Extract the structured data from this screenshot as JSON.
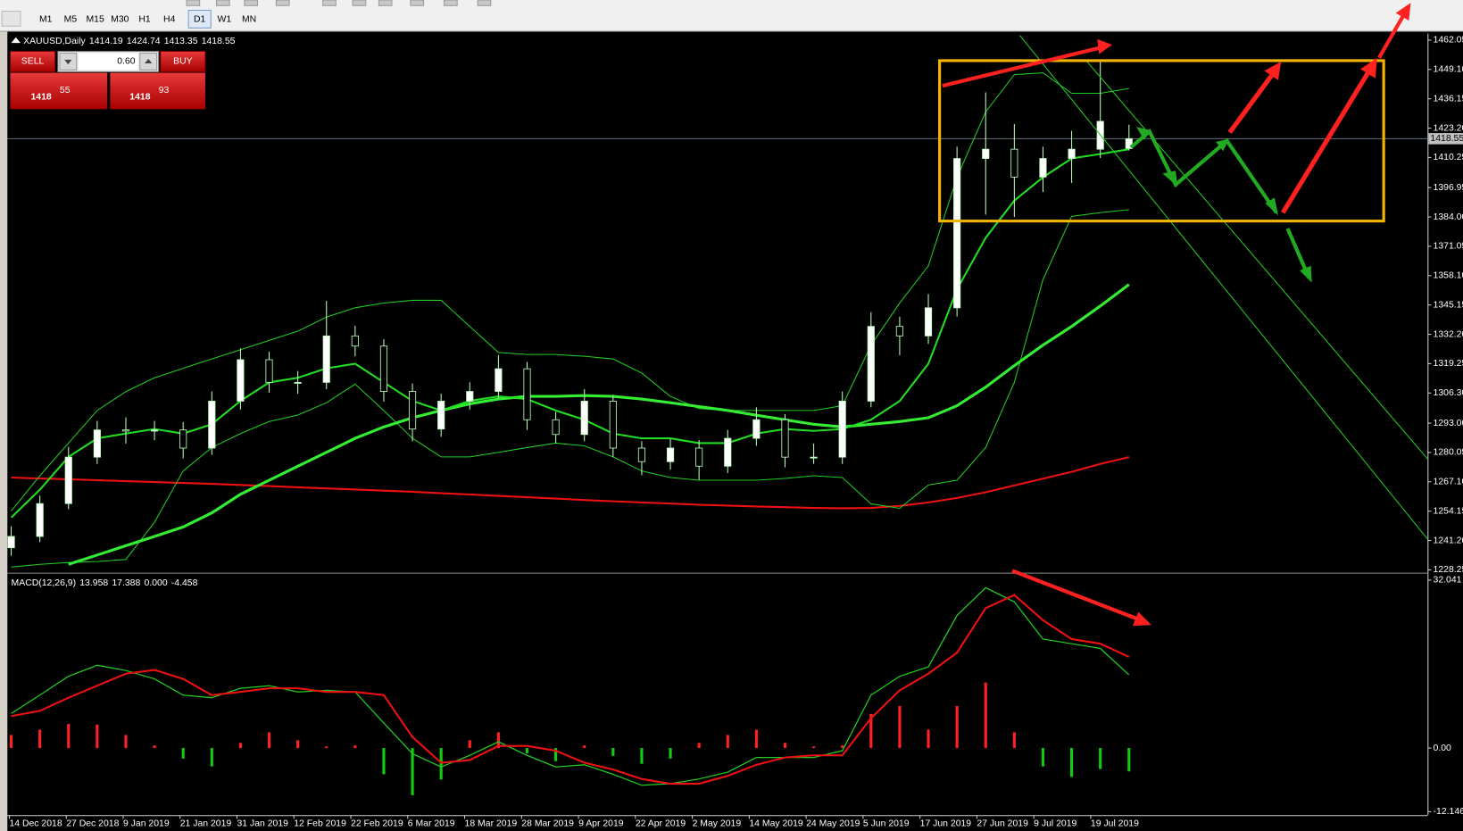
{
  "toolbar": {
    "timeframes": [
      "M1",
      "M5",
      "M15",
      "M30",
      "H1",
      "H4",
      "D1",
      "W1",
      "MN"
    ],
    "active_timeframe": "D1"
  },
  "trade": {
    "sell": "SELL",
    "buy": "BUY",
    "lot": "0.60",
    "bid_big": "1418",
    "bid_pips": "55",
    "ask_big": "1418",
    "ask_pips": "93"
  },
  "chart_data": {
    "type": "candlestick",
    "symbol": "XAUUSD,Daily",
    "candles": [
      [
        1238.0,
        1247.5,
        1234.5,
        1243.0
      ],
      [
        1243.0,
        1261.0,
        1240.5,
        1257.5
      ],
      [
        1257.5,
        1282.5,
        1255.0,
        1278.0
      ],
      [
        1278.0,
        1294.0,
        1275.0,
        1290.0
      ],
      [
        1290.0,
        1295.5,
        1284.0,
        1289.5
      ],
      [
        1289.5,
        1294.0,
        1285.5,
        1290.0
      ],
      [
        1290.0,
        1293.5,
        1277.5,
        1282.0
      ],
      [
        1282.0,
        1307.0,
        1279.0,
        1302.7
      ],
      [
        1302.7,
        1326.0,
        1299.0,
        1321.0
      ],
      [
        1321.0,
        1324.5,
        1306.5,
        1311.0
      ],
      [
        1311.0,
        1316.0,
        1306.0,
        1311.0
      ],
      [
        1311.0,
        1347.0,
        1308.0,
        1331.5
      ],
      [
        1331.5,
        1336.0,
        1322.5,
        1327.0
      ],
      [
        1327.0,
        1330.0,
        1302.5,
        1307.0
      ],
      [
        1307.0,
        1310.5,
        1285.0,
        1290.4
      ],
      [
        1290.4,
        1306.0,
        1287.0,
        1302.7
      ],
      [
        1302.7,
        1311.0,
        1299.0,
        1307.0
      ],
      [
        1307.0,
        1323.0,
        1304.0,
        1317.0
      ],
      [
        1317.0,
        1320.0,
        1290.0,
        1294.5
      ],
      [
        1294.5,
        1298.0,
        1284.0,
        1288.0
      ],
      [
        1288.0,
        1308.0,
        1285.0,
        1302.7
      ],
      [
        1302.7,
        1305.5,
        1278.0,
        1282.0
      ],
      [
        1282.0,
        1285.0,
        1270.0,
        1276.0
      ],
      [
        1276.0,
        1286.0,
        1272.5,
        1282.0
      ],
      [
        1282.0,
        1285.5,
        1268.0,
        1274.0
      ],
      [
        1274.0,
        1290.0,
        1271.0,
        1286.3
      ],
      [
        1286.3,
        1300.0,
        1283.0,
        1294.5
      ],
      [
        1294.5,
        1297.0,
        1273.5,
        1278.0
      ],
      [
        1278.0,
        1284.0,
        1275.0,
        1278.0
      ],
      [
        1278.0,
        1307.0,
        1275.0,
        1302.7
      ],
      [
        1302.7,
        1342.0,
        1300.0,
        1335.7
      ],
      [
        1335.7,
        1340.0,
        1323.0,
        1331.5
      ],
      [
        1331.5,
        1350.0,
        1328.0,
        1343.9
      ],
      [
        1343.9,
        1415.0,
        1340.0,
        1409.8
      ],
      [
        1409.8,
        1439.0,
        1385.0,
        1413.9
      ],
      [
        1413.9,
        1425.0,
        1384.0,
        1401.6
      ],
      [
        1401.6,
        1415.0,
        1395.0,
        1409.8
      ],
      [
        1409.8,
        1422.0,
        1399.0,
        1413.9
      ],
      [
        1413.9,
        1452.5,
        1410.0,
        1426.2
      ],
      [
        1414.19,
        1424.74,
        1413.35,
        1418.55
      ]
    ],
    "bull_color": "#ffffff",
    "bear_color": "#000000",
    "candle_outline": "#b8ffb8",
    "ma_fast": {
      "color": "#22dd22",
      "values": [
        1251.3,
        1263.6,
        1278.1,
        1286.3,
        1288.4,
        1290.4,
        1288.4,
        1292.5,
        1302.8,
        1311.0,
        1313.0,
        1317.2,
        1319.2,
        1311.0,
        1302.8,
        1298.6,
        1302.8,
        1304.8,
        1303.6,
        1298.6,
        1294.5,
        1288.4,
        1286.3,
        1286.3,
        1284.2,
        1284.2,
        1288.4,
        1290.4,
        1289.6,
        1290.4,
        1294.5,
        1302.8,
        1319.2,
        1352.1,
        1374.8,
        1391.2,
        1401.5,
        1409.8,
        1411.8,
        1413.9
      ]
    },
    "ma_slow": {
      "color": "#33ee33",
      "values": [
        null,
        null,
        1230.7,
        1234.8,
        1238.9,
        1243.0,
        1247.2,
        1253.4,
        1261.6,
        1267.8,
        1274.0,
        1280.1,
        1286.3,
        1291.3,
        1295.4,
        1298.6,
        1301.5,
        1303.6,
        1304.8,
        1304.8,
        1305.2,
        1304.8,
        1303.6,
        1302.0,
        1300.3,
        1298.6,
        1296.5,
        1294.5,
        1292.5,
        1291.3,
        1292.5,
        1293.7,
        1295.4,
        1300.7,
        1308.9,
        1318.4,
        1327.4,
        1335.7,
        1344.7,
        1354.2
      ]
    },
    "ma_long": {
      "color": "#ee1111",
      "values": [
        1269.0,
        1268.6,
        1268.2,
        1267.8,
        1267.4,
        1267.0,
        1266.6,
        1266.2,
        1265.7,
        1265.2,
        1264.7,
        1264.2,
        1263.7,
        1263.2,
        1262.7,
        1262.1,
        1261.5,
        1260.9,
        1260.3,
        1259.7,
        1259.1,
        1258.5,
        1258.0,
        1257.5,
        1257.0,
        1256.6,
        1256.2,
        1255.9,
        1255.6,
        1255.4,
        1255.6,
        1256.5,
        1258.0,
        1260.0,
        1262.5,
        1265.5,
        1268.5,
        1271.5,
        1275.0,
        1278.0
      ]
    },
    "band_upper": {
      "color": "#22cc22",
      "values": [
        1254.2,
        1269.8,
        1284.2,
        1298.6,
        1306.9,
        1313.0,
        1317.2,
        1321.3,
        1325.4,
        1329.5,
        1333.6,
        1339.8,
        1343.9,
        1346.0,
        1347.2,
        1347.2,
        1335.7,
        1324.2,
        1323.3,
        1323.3,
        1322.5,
        1321.3,
        1315.1,
        1304.8,
        1299.4,
        1298.6,
        1298.6,
        1298.6,
        1298.6,
        1300.7,
        1327.4,
        1346.0,
        1362.4,
        1401.5,
        1430.3,
        1446.8,
        1447.6,
        1438.6,
        1438.6,
        1440.7
      ]
    },
    "band_lower": {
      "color": "#22cc22",
      "values": [
        1229.5,
        1230.7,
        1231.5,
        1231.9,
        1232.8,
        1249.3,
        1271.9,
        1282.2,
        1288.4,
        1293.7,
        1296.6,
        1302.0,
        1310.2,
        1298.6,
        1286.3,
        1278.1,
        1278.1,
        1280.1,
        1282.2,
        1284.2,
        1283.0,
        1278.1,
        1271.9,
        1269.0,
        1267.8,
        1267.8,
        1267.8,
        1268.6,
        1269.8,
        1269.0,
        1257.4,
        1255.4,
        1265.7,
        1267.8,
        1282.2,
        1311.0,
        1356.3,
        1384.3,
        1385.9,
        1387.2
      ]
    },
    "ylim": [
      1227.84,
      1464.93
    ],
    "yticks": [
      1462.05,
      {
        "value": 1449.1,
        "label": "1449.10"
      },
      1436.15,
      {
        "value": 1423.2,
        "label": "1423.20"
      },
      1410.25,
      1396.95,
      {
        "value": 1384,
        "label": "1384.00"
      },
      1371.05,
      {
        "value": 1358.1,
        "label": "1358.10"
      },
      1345.15,
      {
        "value": 1332.2,
        "label": "1332.20"
      },
      1319.25,
      {
        "value": 1306.3,
        "label": "1306.30"
      },
      {
        "value": 1293,
        "label": "1293.00"
      },
      1280.05,
      {
        "value": 1267.1,
        "label": "1267.10"
      },
      1254.15,
      {
        "value": 1241.2,
        "label": "1241.20"
      },
      1228.25
    ],
    "dates": [
      "14 Dec 2018",
      "27 Dec 2018",
      "9 Jan 2019",
      "21 Jan 2019",
      "31 Jan 2019",
      "12 Feb 2019",
      "22 Feb 2019",
      "6 Mar 2019",
      "18 Mar 2019",
      "28 Mar 2019",
      "9 Apr 2019",
      "22 Apr 2019",
      "2 May 2019",
      "14 May 2019",
      "24 May 2019",
      "5 Jun 2019",
      "17 Jun 2019",
      "27 Jun 2019",
      "9 Jul 2019",
      "19 Jul 2019"
    ],
    "macd": {
      "label": "MACD(12,26,9)",
      "extra_label": "0.000",
      "macd_line": {
        "color": "#22cc22",
        "values": [
          6.6,
          10.1,
          13.7,
          15.8,
          14.8,
          13.2,
          10.1,
          9.6,
          11.4,
          11.9,
          10.7,
          11.0,
          10.7,
          4.8,
          -1.1,
          -3.6,
          -1.4,
          1.2,
          -1.4,
          -3.6,
          -3.2,
          -5.0,
          -7.1,
          -6.8,
          -5.9,
          -4.6,
          -1.8,
          -1.8,
          -1.8,
          -0.5,
          10.1,
          13.7,
          15.5,
          25.3,
          30.6,
          27.9,
          20.8,
          19.9,
          19.0,
          13.958
        ]
      },
      "signal_line": {
        "color": "#ee1111",
        "values": [
          6.1,
          7.1,
          9.6,
          11.9,
          14.2,
          14.9,
          13.2,
          10.1,
          10.7,
          11.4,
          11.4,
          10.7,
          10.7,
          10.1,
          2.1,
          -2.8,
          -2.3,
          0.4,
          0.4,
          -0.5,
          -2.8,
          -4.1,
          -5.9,
          -6.8,
          -6.8,
          -5.3,
          -3.2,
          -1.8,
          -1.4,
          -1.4,
          5.7,
          11.0,
          14.2,
          18.2,
          26.7,
          29.2,
          24.4,
          20.8,
          19.9,
          17.388
        ]
      },
      "histogram": {
        "up_color": "#ff2222",
        "down_color": "#11cc11",
        "values": [
          2.5,
          3.5,
          4.6,
          4.5,
          2.5,
          0.5,
          -2.0,
          -3.5,
          1.0,
          3.0,
          1.5,
          0.3,
          0.5,
          -5.0,
          -9.0,
          -6.0,
          1.5,
          3.0,
          -1.0,
          -2.5,
          0.5,
          -1.5,
          -3.0,
          -2.0,
          1.0,
          2.5,
          3.5,
          1.0,
          0.3,
          0.5,
          6.5,
          8.0,
          3.5,
          8.0,
          12.5,
          3.0,
          -3.5,
          -5.5,
          -4.0,
          -4.458
        ]
      },
      "ylim": [
        -12.8,
        32.93
      ],
      "yticks": [
        32.041,
        {
          "value": 0,
          "label": "0.00"
        },
        -12.146
      ]
    }
  }
}
